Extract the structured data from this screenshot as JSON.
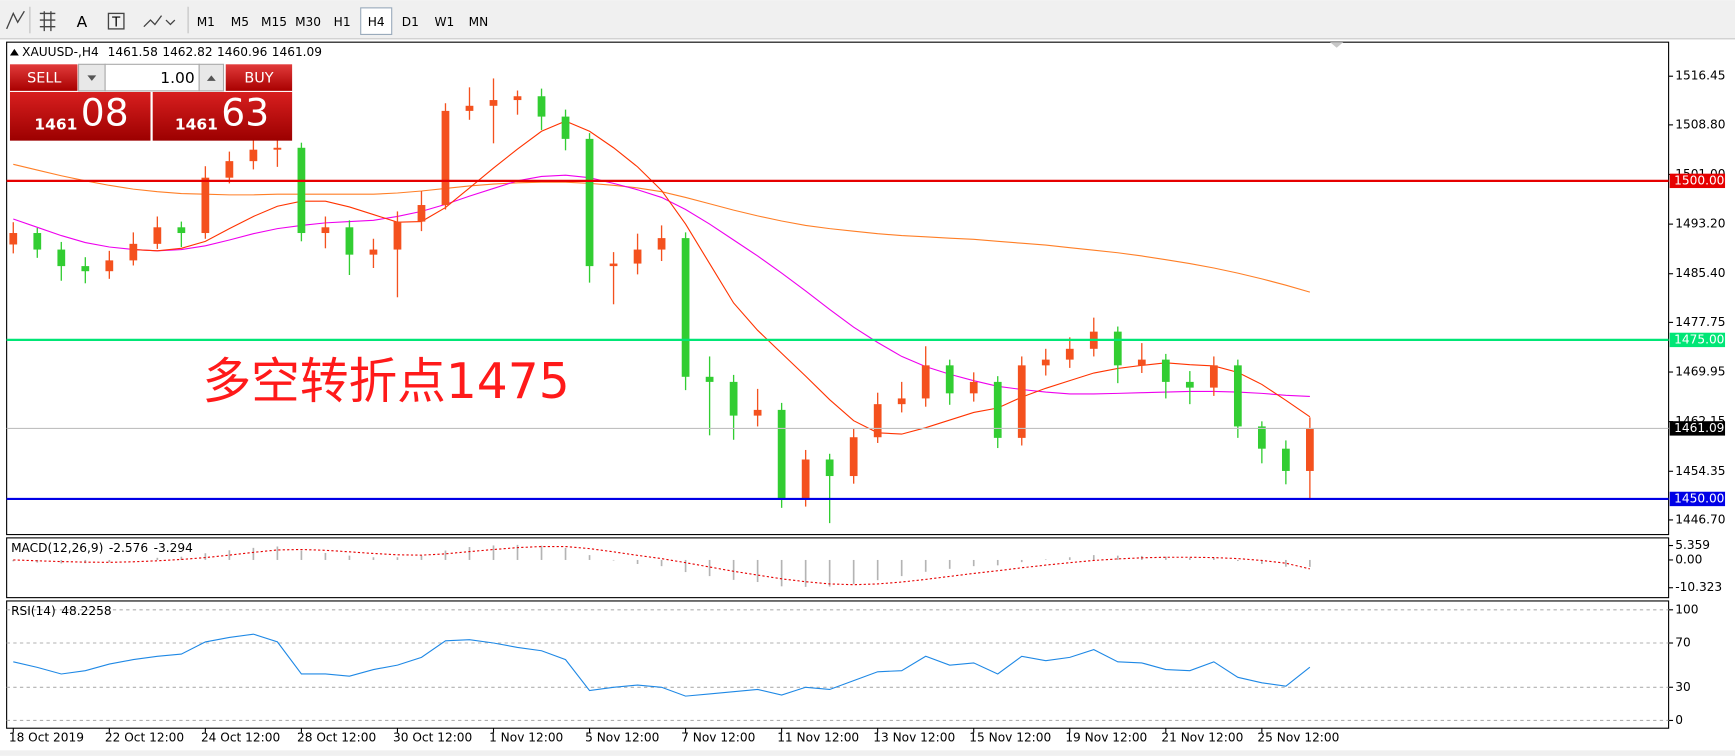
{
  "toolbar": {
    "tools": [
      "A",
      "T"
    ],
    "timeframes": [
      "M1",
      "M5",
      "M15",
      "M30",
      "H1",
      "H4",
      "D1",
      "W1",
      "MN"
    ]
  },
  "trade_panel": {
    "sell_label": "SELL",
    "buy_label": "BUY",
    "lots": "1.00",
    "bid_big": "1461",
    "bid_pips": "08",
    "ask_big": "1461",
    "ask_pips": "63"
  },
  "chart_data": [
    {
      "type": "candlestick",
      "title": "XAUUSD-,H4",
      "ohlc": [
        1461.58,
        1462.82,
        1460.96,
        1461.09
      ],
      "annotation": {
        "text": "多空转折点1475",
        "color": "#ff1a1a"
      },
      "up_color": "#f4511e",
      "down_color": "#32cd32",
      "categories": [
        "18 Oct 2019",
        null,
        null,
        null,
        "22 Oct 12:00",
        null,
        null,
        null,
        "24 Oct 12:00",
        null,
        null,
        null,
        "28 Oct 12:00",
        null,
        null,
        null,
        "30 Oct 12:00",
        null,
        null,
        null,
        "1 Nov 12:00",
        null,
        null,
        null,
        "5 Nov 12:00",
        null,
        null,
        null,
        "7 Nov 12:00",
        null,
        null,
        null,
        "11 Nov 12:00",
        null,
        null,
        null,
        "13 Nov 12:00",
        null,
        null,
        null,
        "15 Nov 12:00",
        null,
        null,
        null,
        "19 Nov 12:00",
        null,
        null,
        null,
        "21 Nov 12:00",
        null,
        null,
        null,
        "25 Nov 12:00",
        null,
        null
      ],
      "open": [
        1490.0,
        1491.8,
        1489.2,
        1486.6,
        1485.8,
        1487.5,
        1490.1,
        1492.7,
        1491.8,
        1500.5,
        1503.1,
        1504.9,
        1505.2,
        1491.8,
        1492.7,
        1488.4,
        1489.2,
        1493.6,
        1496.2,
        1511.0,
        1511.8,
        1512.7,
        1513.3,
        1510.1,
        1506.6,
        1486.6,
        1487.0,
        1489.2,
        1491.0,
        1469.2,
        1468.4,
        1463.1,
        1464.0,
        1450.1,
        1456.2,
        1453.6,
        1459.7,
        1464.9,
        1465.8,
        1471.0,
        1466.6,
        1468.4,
        1459.6,
        1471.0,
        1471.9,
        1473.6,
        1476.3,
        1471.0,
        1471.9,
        1468.4,
        1467.5,
        1471.0,
        1461.4,
        1457.9,
        1454.4
      ],
      "high": [
        1493.5,
        1492.6,
        1490.4,
        1488.0,
        1489.0,
        1491.9,
        1494.4,
        1493.6,
        1502.3,
        1504.6,
        1507.4,
        1506.6,
        1506.0,
        1494.4,
        1493.8,
        1490.9,
        1495.2,
        1498.4,
        1512.2,
        1514.7,
        1516.1,
        1514.2,
        1514.5,
        1511.2,
        1507.5,
        1488.8,
        1491.7,
        1493.0,
        1491.9,
        1472.4,
        1469.5,
        1467.3,
        1465.1,
        1457.7,
        1457.1,
        1461.0,
        1466.7,
        1468.4,
        1474.0,
        1471.9,
        1469.9,
        1469.3,
        1472.4,
        1473.6,
        1475.4,
        1478.5,
        1477.1,
        1474.5,
        1472.8,
        1470.1,
        1472.4,
        1471.9,
        1462.2,
        1459.2,
        1462.82
      ],
      "low": [
        1488.6,
        1487.9,
        1484.3,
        1483.9,
        1484.6,
        1486.7,
        1489.3,
        1489.6,
        1490.9,
        1499.6,
        1501.8,
        1502.2,
        1490.5,
        1489.4,
        1485.2,
        1486.3,
        1481.7,
        1492.1,
        1495.5,
        1509.6,
        1505.9,
        1510.4,
        1508.0,
        1504.8,
        1484.0,
        1480.6,
        1485.3,
        1487.4,
        1467.1,
        1460.0,
        1459.3,
        1461.4,
        1448.6,
        1448.8,
        1446.2,
        1452.4,
        1458.8,
        1463.6,
        1464.5,
        1464.8,
        1465.3,
        1458.0,
        1458.4,
        1469.4,
        1470.6,
        1472.4,
        1468.2,
        1469.8,
        1465.8,
        1464.9,
        1466.2,
        1459.6,
        1455.6,
        1452.3,
        1450.1
      ],
      "close": [
        1491.8,
        1489.2,
        1486.6,
        1485.8,
        1487.5,
        1490.1,
        1492.7,
        1491.8,
        1500.5,
        1503.1,
        1504.9,
        1505.2,
        1491.8,
        1492.7,
        1488.4,
        1489.2,
        1493.6,
        1496.2,
        1511.0,
        1511.8,
        1512.7,
        1513.3,
        1510.1,
        1506.6,
        1486.6,
        1487.0,
        1489.2,
        1491.0,
        1469.2,
        1468.4,
        1463.1,
        1464.0,
        1450.1,
        1456.2,
        1453.6,
        1459.7,
        1464.9,
        1465.8,
        1471.0,
        1466.6,
        1468.4,
        1459.6,
        1471.0,
        1471.9,
        1473.6,
        1476.3,
        1471.0,
        1471.9,
        1468.4,
        1467.5,
        1471.0,
        1461.4,
        1457.9,
        1454.4,
        1461.09
      ],
      "lines": [
        {
          "color": "#ff7f27",
          "values": [
            1502.6,
            1501.7,
            1500.8,
            1500.0,
            1499.3,
            1498.7,
            1498.3,
            1498.0,
            1497.9,
            1497.8,
            1497.8,
            1497.9,
            1497.9,
            1497.9,
            1497.9,
            1497.9,
            1498.1,
            1498.4,
            1498.8,
            1499.2,
            1499.5,
            1499.7,
            1499.8,
            1499.8,
            1499.6,
            1499.3,
            1498.9,
            1498.3,
            1497.4,
            1496.4,
            1495.4,
            1494.5,
            1493.7,
            1493.0,
            1492.5,
            1492.1,
            1491.7,
            1491.4,
            1491.2,
            1491.0,
            1490.8,
            1490.5,
            1490.2,
            1489.9,
            1489.5,
            1489.1,
            1488.7,
            1488.2,
            1487.6,
            1487.0,
            1486.3,
            1485.5,
            1484.6,
            1483.6,
            1482.5
          ]
        },
        {
          "color": "#ee00ee",
          "values": [
            1494.0,
            1492.7,
            1491.4,
            1490.3,
            1489.6,
            1489.2,
            1489.0,
            1489.2,
            1489.8,
            1490.7,
            1491.7,
            1492.5,
            1493.0,
            1493.4,
            1493.6,
            1493.8,
            1494.4,
            1495.2,
            1496.3,
            1497.6,
            1498.8,
            1500.0,
            1500.7,
            1500.9,
            1500.5,
            1499.6,
            1498.6,
            1497.4,
            1495.5,
            1493.2,
            1490.7,
            1488.2,
            1485.5,
            1482.7,
            1479.8,
            1477.0,
            1474.6,
            1472.4,
            1470.8,
            1469.6,
            1468.6,
            1467.7,
            1467.2,
            1466.8,
            1466.5,
            1466.5,
            1466.6,
            1466.7,
            1466.8,
            1466.9,
            1466.9,
            1466.8,
            1466.6,
            1466.3,
            1466.1
          ]
        },
        {
          "color": "#ff3300",
          "values": [
            null,
            null,
            null,
            null,
            null,
            1489.2,
            1489.0,
            1489.4,
            1490.5,
            1492.5,
            1494.4,
            1496.0,
            1496.8,
            1496.8,
            1495.9,
            1494.7,
            1493.5,
            1493.6,
            1495.8,
            1498.9,
            1502.0,
            1505.0,
            1507.8,
            1509.4,
            1507.8,
            1505.2,
            1502.2,
            1498.5,
            1493.2,
            1487.0,
            1480.8,
            1476.5,
            1472.9,
            1469.3,
            1465.6,
            1462.3,
            1460.4,
            1460.2,
            1461.2,
            1462.4,
            1463.6,
            1464.3,
            1466.0,
            1467.4,
            1468.6,
            1469.8,
            1470.5,
            1471.0,
            1471.4,
            1471.1,
            1470.9,
            1469.9,
            1468.0,
            1465.5,
            1462.9
          ]
        }
      ],
      "levels": [
        {
          "value": 1500,
          "label": "1500.00",
          "color": "#e60000",
          "label_bg": "#e60000"
        },
        {
          "value": 1475,
          "label": "1475.00",
          "color": "#00e676",
          "label_bg": "#00e676"
        },
        {
          "value": 1450,
          "label": "1450.00",
          "color": "#0000e6",
          "label_bg": "#0000e6"
        },
        {
          "value": 1461.09,
          "label": "1461.09",
          "color": "#c0c0c0",
          "label_bg": "#000000"
        }
      ],
      "ylim": [
        1444.4,
        1521.8
      ],
      "yticks": [
        1516.45,
        {
          "value": 1508.8,
          "label": "1508.80"
        },
        {
          "value": 1501,
          "label": "1501.00"
        },
        {
          "value": 1493.2,
          "label": "1493.20"
        },
        {
          "value": 1485.4,
          "label": "1485.40"
        },
        1477.75,
        1469.95,
        1462.15,
        1454.35,
        {
          "value": 1446.7,
          "label": "1446.70"
        }
      ]
    },
    {
      "type": "macd",
      "title": "MACD(12,26,9)",
      "readout": [
        -2.576,
        -3.294
      ],
      "histogram_color": "#b4b4b4",
      "signal_color": "#e60000",
      "histogram": [
        -0.5,
        -1.0,
        -1.3,
        -1.2,
        -0.8,
        0.0,
        0.8,
        1.2,
        2.5,
        3.6,
        4.5,
        5.0,
        3.5,
        2.6,
        1.6,
        1.0,
        1.0,
        1.6,
        3.5,
        4.8,
        5.4,
        5.6,
        5.3,
        4.5,
        1.8,
        -0.2,
        -1.5,
        -2.3,
        -4.5,
        -6.0,
        -7.4,
        -8.2,
        -9.8,
        -10.0,
        -9.9,
        -9.0,
        -7.5,
        -6.0,
        -4.4,
        -3.3,
        -2.3,
        -2.0,
        -0.8,
        0.2,
        1.0,
        1.8,
        1.6,
        1.5,
        1.2,
        0.8,
        0.8,
        -0.4,
        -1.5,
        -2.5,
        -2.576
      ],
      "signal": [
        0.0,
        -0.3,
        -0.6,
        -0.8,
        -0.9,
        -0.7,
        -0.3,
        0.2,
        0.9,
        1.8,
        2.8,
        3.7,
        3.9,
        3.6,
        3.0,
        2.4,
        1.9,
        1.8,
        2.3,
        3.1,
        3.9,
        4.6,
        5.0,
        5.0,
        4.2,
        3.0,
        1.7,
        0.5,
        -1.0,
        -2.6,
        -4.2,
        -5.6,
        -7.0,
        -8.1,
        -8.9,
        -9.2,
        -8.9,
        -8.2,
        -7.2,
        -6.1,
        -5.0,
        -4.0,
        -2.9,
        -1.9,
        -1.0,
        -0.2,
        0.4,
        0.8,
        1.0,
        1.0,
        0.9,
        0.5,
        -0.2,
        -1.2,
        -3.294
      ],
      "ylim": [
        -14,
        8.2
      ],
      "yticks": [
        5.359,
        {
          "value": 0,
          "label": "0.00"
        },
        -10.323
      ]
    },
    {
      "type": "line",
      "title": "RSI(14)",
      "readout": 48.2258,
      "color": "#1e88e5",
      "values": [
        53,
        48,
        42,
        45,
        51,
        55,
        58,
        60,
        71,
        75,
        78,
        71,
        42,
        42,
        40,
        46,
        50,
        57,
        72,
        73,
        70,
        66,
        63,
        55,
        27,
        30,
        32,
        30,
        22,
        24,
        26,
        28,
        23,
        30,
        28,
        36,
        44,
        45,
        58,
        50,
        52,
        42,
        58,
        54,
        57,
        64,
        53,
        52,
        46,
        45,
        53,
        39,
        34,
        31,
        48.2258
      ],
      "ylim": [
        -7,
        108
      ],
      "yticks": [
        100,
        70,
        30,
        0
      ],
      "grid": true
    }
  ]
}
